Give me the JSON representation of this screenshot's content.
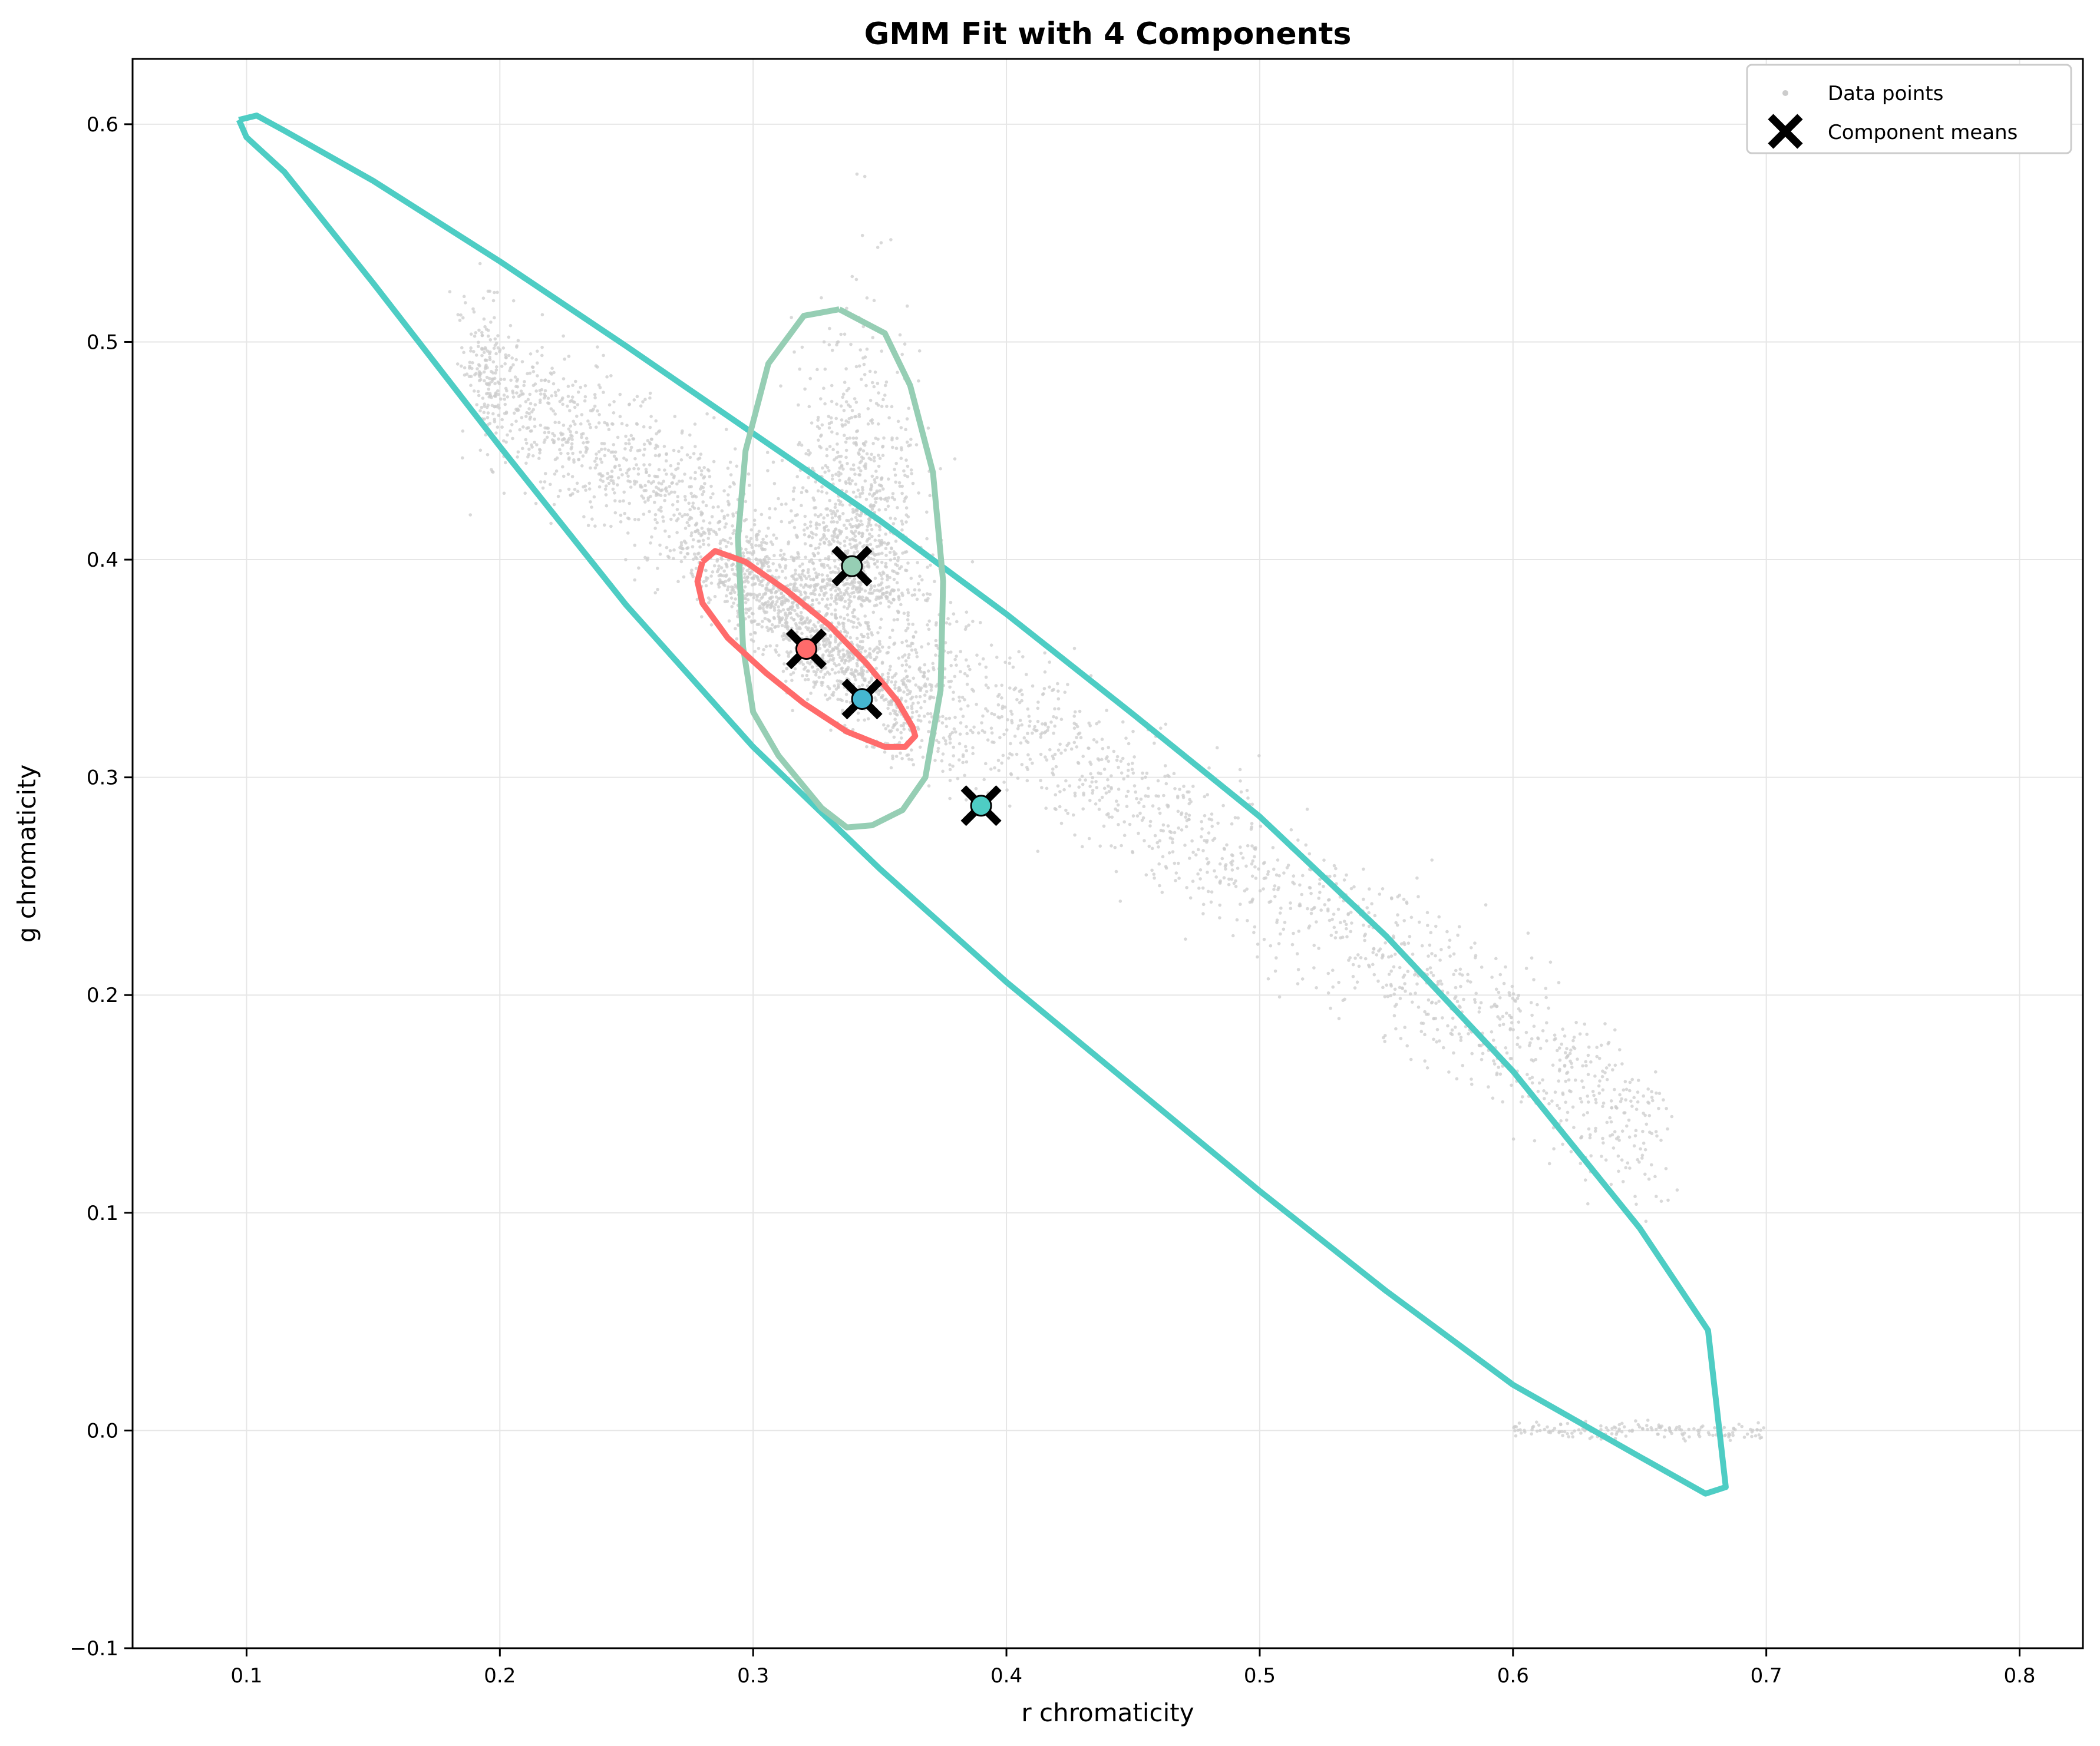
{
  "chart_data": {
    "type": "scatter",
    "title": "GMM Fit with 4 Components",
    "xlabel": "r chromaticity",
    "ylabel": "g chromaticity",
    "xlim": [
      0.055,
      0.825
    ],
    "ylim": [
      -0.1,
      0.63
    ],
    "xticks": [
      0.1,
      0.2,
      0.3,
      0.4,
      0.5,
      0.6,
      0.7,
      0.8
    ],
    "yticks": [
      -0.1,
      0.0,
      0.1,
      0.2,
      0.3,
      0.4,
      0.5,
      0.6
    ],
    "grid": true,
    "legend": {
      "position": "top-right",
      "entries": [
        {
          "label": "Data points",
          "marker": "dot",
          "color": "#cccccc"
        },
        {
          "label": "Component means",
          "marker": "x",
          "color": "#000000"
        }
      ]
    },
    "data_cloud": {
      "color": "#cccccc",
      "description_points": [
        {
          "x": 0.33,
          "y": 0.37
        },
        {
          "x": 0.4,
          "y": 0.28
        },
        {
          "x": 0.34,
          "y": 0.43
        }
      ]
    },
    "components": [
      {
        "name": "1",
        "color": "#ff6b6b",
        "mean": [
          0.321,
          0.359
        ],
        "ellipse": {
          "angle_deg": -38,
          "width": 0.058,
          "height": 0.024,
          "scale_note": ""
        }
      },
      {
        "name": "2",
        "color": "#4ecdc4",
        "mean": [
          0.39,
          0.287
        ],
        "ellipse": {
          "angle_deg": -45,
          "width": 0.0,
          "height": 0.0,
          "scale_note": ""
        }
      },
      {
        "name": "3",
        "color": "#45b7d1",
        "mean": [
          0.343,
          0.336
        ],
        "ellipse": {
          "angle_deg": 0,
          "width": 0.0,
          "height": 0.0,
          "scale_note": ""
        }
      },
      {
        "name": "4",
        "color": "#96ceb4",
        "mean": [
          0.339,
          0.397
        ],
        "ellipse": {
          "angle_deg": 0,
          "width": 0.0,
          "height": 0.0,
          "scale_note": ""
        }
      }
    ],
    "contours": [
      {
        "component": "2",
        "color": "#4ecdc4",
        "points": [
          [
            0.097,
            0.602
          ],
          [
            0.104,
            0.604
          ],
          [
            0.115,
            0.597
          ],
          [
            0.15,
            0.574
          ],
          [
            0.2,
            0.537
          ],
          [
            0.25,
            0.498
          ],
          [
            0.3,
            0.458
          ],
          [
            0.35,
            0.418
          ],
          [
            0.4,
            0.375
          ],
          [
            0.45,
            0.329
          ],
          [
            0.5,
            0.282
          ],
          [
            0.55,
            0.227
          ],
          [
            0.6,
            0.165
          ],
          [
            0.65,
            0.093
          ],
          [
            0.677,
            0.046
          ],
          [
            0.684,
            -0.026
          ],
          [
            0.676,
            -0.029
          ],
          [
            0.65,
            -0.012
          ],
          [
            0.6,
            0.021
          ],
          [
            0.55,
            0.064
          ],
          [
            0.5,
            0.11
          ],
          [
            0.45,
            0.158
          ],
          [
            0.4,
            0.206
          ],
          [
            0.35,
            0.258
          ],
          [
            0.3,
            0.314
          ],
          [
            0.25,
            0.379
          ],
          [
            0.2,
            0.452
          ],
          [
            0.15,
            0.527
          ],
          [
            0.115,
            0.578
          ],
          [
            0.1,
            0.594
          ],
          [
            0.097,
            0.602
          ]
        ]
      },
      {
        "component": "4",
        "color": "#96ceb4",
        "points": [
          [
            0.334,
            0.515
          ],
          [
            0.352,
            0.504
          ],
          [
            0.362,
            0.48
          ],
          [
            0.371,
            0.44
          ],
          [
            0.375,
            0.39
          ],
          [
            0.374,
            0.34
          ],
          [
            0.368,
            0.3
          ],
          [
            0.359,
            0.285
          ],
          [
            0.347,
            0.278
          ],
          [
            0.337,
            0.277
          ],
          [
            0.327,
            0.286
          ],
          [
            0.31,
            0.31
          ],
          [
            0.3,
            0.33
          ],
          [
            0.296,
            0.36
          ],
          [
            0.294,
            0.41
          ],
          [
            0.297,
            0.45
          ],
          [
            0.306,
            0.49
          ],
          [
            0.32,
            0.512
          ],
          [
            0.334,
            0.515
          ]
        ]
      },
      {
        "component": "1",
        "color": "#ff6b6b",
        "points": [
          [
            0.28,
            0.399
          ],
          [
            0.285,
            0.404
          ],
          [
            0.297,
            0.399
          ],
          [
            0.313,
            0.386
          ],
          [
            0.33,
            0.37
          ],
          [
            0.345,
            0.352
          ],
          [
            0.357,
            0.335
          ],
          [
            0.363,
            0.323
          ],
          [
            0.364,
            0.319
          ],
          [
            0.36,
            0.314
          ],
          [
            0.352,
            0.314
          ],
          [
            0.337,
            0.321
          ],
          [
            0.32,
            0.334
          ],
          [
            0.305,
            0.348
          ],
          [
            0.29,
            0.364
          ],
          [
            0.28,
            0.38
          ],
          [
            0.278,
            0.39
          ],
          [
            0.28,
            0.399
          ]
        ]
      }
    ]
  }
}
